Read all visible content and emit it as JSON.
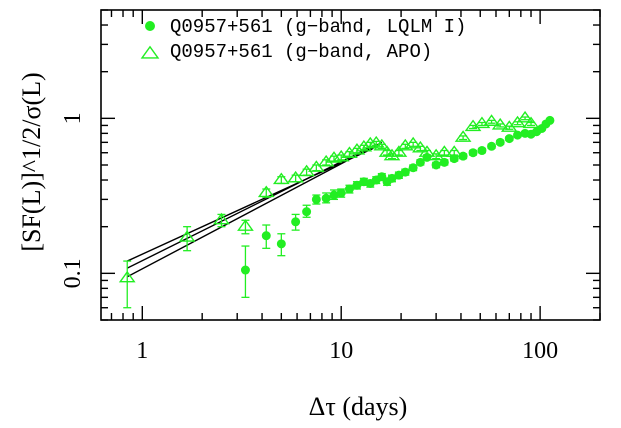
{
  "chart_data": {
    "type": "scatter",
    "xlabel": "Δτ (days)",
    "ylabel": "[SF(L)]^1/2/σ(L)",
    "xscale": "log",
    "yscale": "log",
    "xlim": [
      0.62,
      200
    ],
    "ylim": [
      0.05,
      5
    ],
    "x_ticks": [
      {
        "value": 1,
        "label": "1"
      },
      {
        "value": 10,
        "label": "10"
      },
      {
        "value": 100,
        "label": "100"
      }
    ],
    "y_ticks": [
      {
        "value": 0.1,
        "label": "0.1"
      },
      {
        "value": 1,
        "label": "1"
      }
    ],
    "legend_position": "top-left",
    "series": [
      {
        "name": "Q0957+561 (g−band, LQLM I)",
        "marker": "filled-circle",
        "color": "#22ee22",
        "points": [
          {
            "x": 3.3,
            "y": 0.105,
            "lo": 0.07,
            "hi": 0.15
          },
          {
            "x": 4.2,
            "y": 0.175,
            "lo": 0.145,
            "hi": 0.205
          },
          {
            "x": 5.0,
            "y": 0.155,
            "lo": 0.13,
            "hi": 0.18
          },
          {
            "x": 5.9,
            "y": 0.215,
            "lo": 0.19,
            "hi": 0.24
          },
          {
            "x": 6.7,
            "y": 0.25,
            "lo": 0.23,
            "hi": 0.275
          },
          {
            "x": 7.5,
            "y": 0.3,
            "lo": 0.28,
            "hi": 0.32
          },
          {
            "x": 8.4,
            "y": 0.305,
            "lo": 0.285,
            "hi": 0.33
          },
          {
            "x": 9.2,
            "y": 0.32,
            "lo": 0.3,
            "hi": 0.345
          },
          {
            "x": 10.0,
            "y": 0.33,
            "lo": 0.31,
            "hi": 0.35
          },
          {
            "x": 11.0,
            "y": 0.35,
            "lo": 0.33,
            "hi": 0.37
          },
          {
            "x": 12.0,
            "y": 0.37,
            "lo": 0.35,
            "hi": 0.39
          },
          {
            "x": 13.0,
            "y": 0.39,
            "lo": 0.37,
            "hi": 0.41
          },
          {
            "x": 14.0,
            "y": 0.38,
            "lo": 0.36,
            "hi": 0.4
          },
          {
            "x": 15.0,
            "y": 0.4,
            "lo": 0.38,
            "hi": 0.42
          },
          {
            "x": 16.0,
            "y": 0.42,
            "lo": 0.4,
            "hi": 0.44
          },
          {
            "x": 17.0,
            "y": 0.39,
            "lo": 0.37,
            "hi": 0.41
          },
          {
            "x": 18.0,
            "y": 0.41,
            "lo": 0.39,
            "hi": 0.43
          },
          {
            "x": 19.5,
            "y": 0.43,
            "lo": 0.41,
            "hi": 0.45
          },
          {
            "x": 21.0,
            "y": 0.45,
            "lo": 0.43,
            "hi": 0.47
          },
          {
            "x": 23.0,
            "y": 0.48,
            "lo": 0.46,
            "hi": 0.5
          },
          {
            "x": 25.0,
            "y": 0.52,
            "lo": 0.5,
            "hi": 0.54
          },
          {
            "x": 27.0,
            "y": 0.56,
            "lo": 0.54,
            "hi": 0.58
          },
          {
            "x": 30.0,
            "y": 0.5,
            "lo": 0.48,
            "hi": 0.52
          },
          {
            "x": 33.0,
            "y": 0.52,
            "lo": 0.5,
            "hi": 0.54
          },
          {
            "x": 37.0,
            "y": 0.55,
            "lo": 0.53,
            "hi": 0.57
          },
          {
            "x": 41.0,
            "y": 0.57,
            "lo": 0.55,
            "hi": 0.59
          },
          {
            "x": 46.0,
            "y": 0.6,
            "lo": 0.58,
            "hi": 0.62
          },
          {
            "x": 51.0,
            "y": 0.62,
            "lo": 0.6,
            "hi": 0.64
          },
          {
            "x": 57.0,
            "y": 0.66,
            "lo": 0.64,
            "hi": 0.68
          },
          {
            "x": 63.0,
            "y": 0.7,
            "lo": 0.68,
            "hi": 0.72
          },
          {
            "x": 70.0,
            "y": 0.74,
            "lo": 0.72,
            "hi": 0.76
          },
          {
            "x": 77.0,
            "y": 0.78,
            "lo": 0.76,
            "hi": 0.8
          },
          {
            "x": 84.0,
            "y": 0.8,
            "lo": 0.78,
            "hi": 0.82
          },
          {
            "x": 90.0,
            "y": 0.79,
            "lo": 0.77,
            "hi": 0.81
          },
          {
            "x": 96.0,
            "y": 0.82,
            "lo": 0.8,
            "hi": 0.84
          },
          {
            "x": 102.0,
            "y": 0.86,
            "lo": 0.84,
            "hi": 0.88
          },
          {
            "x": 107.0,
            "y": 0.92,
            "lo": 0.9,
            "hi": 0.94
          },
          {
            "x": 112.0,
            "y": 0.97,
            "lo": 0.95,
            "hi": 0.99
          }
        ]
      },
      {
        "name": "Q0957+561 (g−band, APO)",
        "marker": "open-triangle",
        "color": "#22ee22",
        "points": [
          {
            "x": 0.84,
            "y": 0.093,
            "lo": 0.06,
            "hi": 0.12
          },
          {
            "x": 1.68,
            "y": 0.17,
            "lo": 0.14,
            "hi": 0.2
          },
          {
            "x": 2.5,
            "y": 0.22,
            "lo": 0.2,
            "hi": 0.24
          },
          {
            "x": 3.3,
            "y": 0.2,
            "lo": 0.18,
            "hi": 0.22
          },
          {
            "x": 4.2,
            "y": 0.33,
            "lo": 0.31,
            "hi": 0.35
          },
          {
            "x": 5.0,
            "y": 0.4,
            "lo": 0.38,
            "hi": 0.42
          },
          {
            "x": 5.9,
            "y": 0.41,
            "lo": 0.39,
            "hi": 0.43
          },
          {
            "x": 6.7,
            "y": 0.45,
            "lo": 0.43,
            "hi": 0.47
          },
          {
            "x": 7.5,
            "y": 0.48,
            "lo": 0.46,
            "hi": 0.5
          },
          {
            "x": 8.4,
            "y": 0.52,
            "lo": 0.5,
            "hi": 0.54
          },
          {
            "x": 9.2,
            "y": 0.55,
            "lo": 0.53,
            "hi": 0.57
          },
          {
            "x": 10.0,
            "y": 0.56,
            "lo": 0.54,
            "hi": 0.58
          },
          {
            "x": 11.0,
            "y": 0.59,
            "lo": 0.57,
            "hi": 0.61
          },
          {
            "x": 12.0,
            "y": 0.62,
            "lo": 0.6,
            "hi": 0.64
          },
          {
            "x": 13.0,
            "y": 0.65,
            "lo": 0.63,
            "hi": 0.67
          },
          {
            "x": 14.0,
            "y": 0.68,
            "lo": 0.66,
            "hi": 0.7
          },
          {
            "x": 15.0,
            "y": 0.69,
            "lo": 0.67,
            "hi": 0.71
          },
          {
            "x": 16.0,
            "y": 0.66,
            "lo": 0.64,
            "hi": 0.68
          },
          {
            "x": 17.0,
            "y": 0.6,
            "lo": 0.58,
            "hi": 0.62
          },
          {
            "x": 18.0,
            "y": 0.57,
            "lo": 0.55,
            "hi": 0.59
          },
          {
            "x": 19.5,
            "y": 0.6,
            "lo": 0.58,
            "hi": 0.62
          },
          {
            "x": 21.0,
            "y": 0.66,
            "lo": 0.64,
            "hi": 0.68
          },
          {
            "x": 23.0,
            "y": 0.68,
            "lo": 0.66,
            "hi": 0.7
          },
          {
            "x": 25.0,
            "y": 0.64,
            "lo": 0.62,
            "hi": 0.66
          },
          {
            "x": 27.0,
            "y": 0.6,
            "lo": 0.58,
            "hi": 0.62
          },
          {
            "x": 30.0,
            "y": 0.57,
            "lo": 0.55,
            "hi": 0.59
          },
          {
            "x": 33.0,
            "y": 0.6,
            "lo": 0.58,
            "hi": 0.62
          },
          {
            "x": 37.0,
            "y": 0.6,
            "lo": 0.58,
            "hi": 0.62
          },
          {
            "x": 41.0,
            "y": 0.75,
            "lo": 0.73,
            "hi": 0.77
          },
          {
            "x": 46.0,
            "y": 0.88,
            "lo": 0.86,
            "hi": 0.9
          },
          {
            "x": 51.0,
            "y": 0.92,
            "lo": 0.9,
            "hi": 0.94
          },
          {
            "x": 57.0,
            "y": 0.95,
            "lo": 0.93,
            "hi": 0.97
          },
          {
            "x": 63.0,
            "y": 0.9,
            "lo": 0.88,
            "hi": 0.92
          },
          {
            "x": 70.0,
            "y": 0.87,
            "lo": 0.85,
            "hi": 0.89
          },
          {
            "x": 77.0,
            "y": 0.93,
            "lo": 0.91,
            "hi": 0.95
          },
          {
            "x": 84.0,
            "y": 1.0,
            "lo": 0.98,
            "hi": 1.02
          },
          {
            "x": 90.0,
            "y": 0.92,
            "lo": 0.9,
            "hi": 0.94
          }
        ]
      }
    ],
    "fit_lines": [
      {
        "x": [
          0.84,
          16.0
        ],
        "y": [
          0.095,
          0.7
        ]
      },
      {
        "x": [
          0.84,
          15.0
        ],
        "y": [
          0.108,
          0.68
        ]
      },
      {
        "x": [
          0.84,
          14.5
        ],
        "y": [
          0.12,
          0.64
        ]
      }
    ]
  }
}
